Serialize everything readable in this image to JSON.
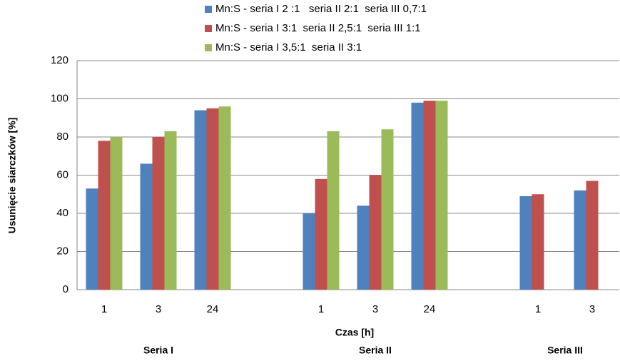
{
  "chart_data": {
    "type": "bar",
    "x_label": "Czas [h]",
    "y_label": "Usunięcie siarczków  [%]",
    "categories": [
      "1",
      "3",
      "24",
      null,
      "1",
      "3",
      "24",
      null,
      "1",
      "3"
    ],
    "group_labels": [
      "Seria I",
      "Seria II",
      "Seria III"
    ],
    "series": [
      {
        "name": "Mn:S - seria I 2 :1   seria II 2:1  seria III 0,7:1",
        "color": "#4f81bd",
        "values": [
          53,
          66,
          94,
          null,
          40,
          44,
          98,
          null,
          49,
          52
        ]
      },
      {
        "name": "Mn:S - seria I 3:1  seria II 2,5:1  seria III 1:1",
        "color": "#c0504d",
        "values": [
          78,
          80,
          95,
          null,
          58,
          60,
          99,
          null,
          50,
          57
        ]
      },
      {
        "name": "Mn:S - seria I 3,5:1  seria II 3:1",
        "color": "#9bbb59",
        "values": [
          80,
          83,
          96,
          null,
          83,
          84,
          99,
          null,
          null,
          null
        ]
      }
    ],
    "ylim": [
      0,
      120
    ],
    "yticks": [
      0,
      20,
      40,
      60,
      80,
      100,
      120
    ],
    "grid": true
  }
}
